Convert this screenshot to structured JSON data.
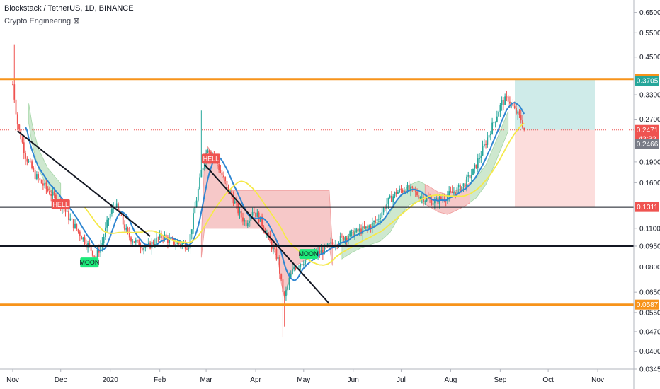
{
  "header": {
    "symbol_line": "Blockstack / TetherUS, 1D, BINANCE",
    "indicator_line": "Crypto Engineering ⊠"
  },
  "colors": {
    "up": "#26a69a",
    "down": "#ef5350",
    "orange": "#f7931a",
    "blue_ma": "#2f86d1",
    "yellow_ma": "#f5e94a",
    "cloud_green": "#a5d6a7",
    "cloud_red": "#ef9a9a"
  },
  "chart_data": {
    "type": "candlestick",
    "x_ticks": [
      "Nov",
      "Dec",
      "2020",
      "Feb",
      "Mar",
      "Apr",
      "May",
      "Jun",
      "Jul",
      "Aug",
      "Sep",
      "Oct",
      "Nov"
    ],
    "y_ticks": [
      0.65,
      0.55,
      0.45,
      0.33,
      0.27,
      0.19,
      0.16,
      0.11,
      0.095,
      0.08,
      0.065,
      0.055,
      0.047,
      0.04,
      0.0345
    ],
    "y_tick_labels": [
      "0.6500",
      "0.5500",
      "0.4500",
      "0.3300",
      "0.2700",
      "0.1900",
      "0.1600",
      "0.1100",
      "0.0950",
      "0.0800",
      "0.0650",
      "0.0550",
      "0.0470",
      "0.0400",
      "0.0345"
    ],
    "ylim": [
      0.0345,
      0.72
    ],
    "log_scale": true,
    "price_tags": [
      {
        "label": "0.3758",
        "value": 0.3758,
        "color": "#f7931a"
      },
      {
        "label": "0.3705",
        "value": 0.3705,
        "color": "#26a69a"
      },
      {
        "label": "0.2471",
        "value": 0.2471,
        "color": "#ef5350"
      },
      {
        "label": "42:32",
        "value": 0.23,
        "color": "#ef5350"
      },
      {
        "label": "0.2466",
        "value": 0.22,
        "color": "#787b86"
      },
      {
        "label": "0.1311",
        "value": 0.1311,
        "color": "#ef5350"
      },
      {
        "label": "0.0587",
        "value": 0.0587,
        "color": "#f7931a"
      }
    ],
    "horizontal_levels": [
      {
        "value": 0.3758,
        "color": "#f7931a"
      },
      {
        "value": 0.1311,
        "color": "#131722"
      },
      {
        "value": 0.095,
        "color": "#131722"
      },
      {
        "value": 0.0587,
        "color": "#f7931a"
      }
    ],
    "signals": [
      {
        "label": "HELL",
        "type": "sell",
        "date": "Dec",
        "value": 0.134
      },
      {
        "label": "MOON",
        "type": "buy",
        "date": "Dec",
        "value": 0.083
      },
      {
        "label": "HELL",
        "type": "sell",
        "date": "Feb",
        "value": 0.195
      },
      {
        "label": "MOON",
        "type": "buy",
        "date": "Apr",
        "value": 0.089
      }
    ],
    "position": {
      "entry": 0.2471,
      "target": 0.3758,
      "stop": 0.1311
    }
  }
}
